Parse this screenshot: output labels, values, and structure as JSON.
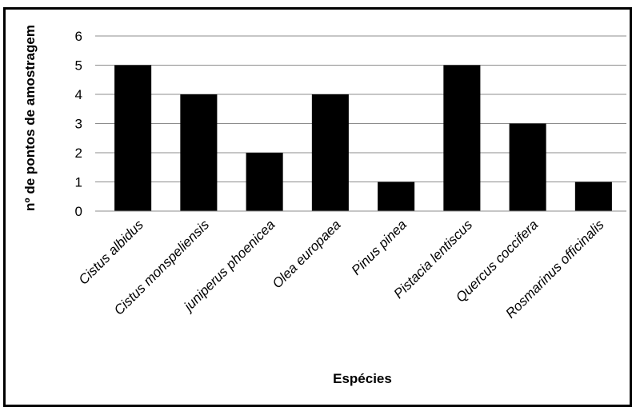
{
  "chart_data": {
    "type": "bar",
    "title": "",
    "xlabel": "Espécies",
    "ylabel": "nº de pontos de amostragem",
    "ylim": [
      0,
      6
    ],
    "yticks": [
      0,
      1,
      2,
      3,
      4,
      5,
      6
    ],
    "grid": true,
    "legend": "none",
    "categories": [
      "Cistus albidus",
      "Cistus monspeliensis",
      "juniperus phoenicea",
      "Olea europaea",
      "Pinus pinea",
      "Pistacia lentiscus",
      "Quercus coccifera",
      "Rosmarinus officinalis"
    ],
    "values": [
      5,
      4,
      2,
      4,
      1,
      5,
      3,
      1
    ],
    "bar_color": "#000000",
    "grid_color": "#8c8c8c"
  }
}
